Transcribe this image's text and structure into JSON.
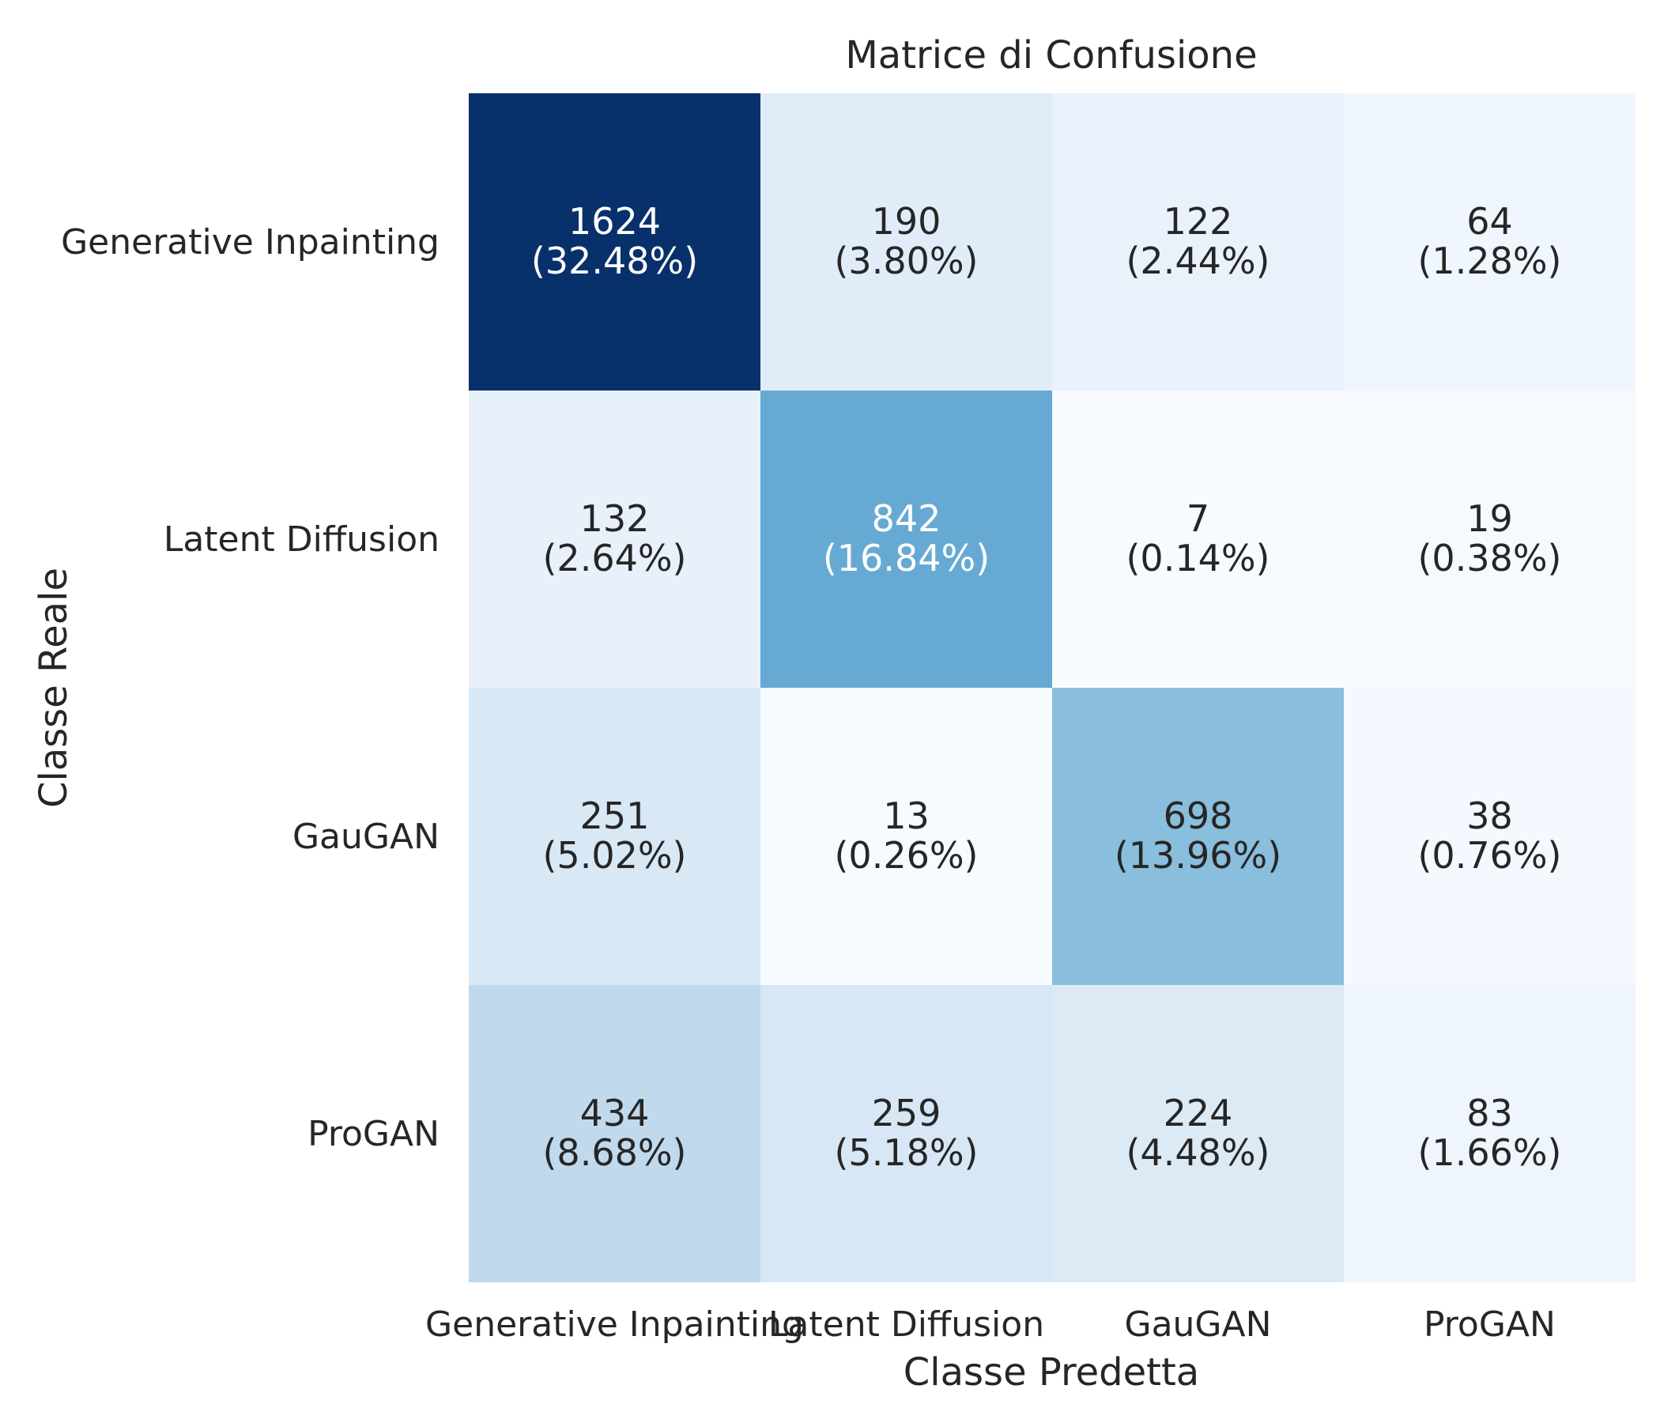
{
  "chart_data": {
    "type": "heatmap",
    "title": "Matrice di Confusione",
    "xlabel": "Classe Predetta",
    "ylabel": "Classe Reale",
    "x_categories": [
      "Generative Inpainting",
      "Latent Diffusion",
      "GauGAN",
      "ProGAN"
    ],
    "y_categories": [
      "Generative Inpainting",
      "Latent Diffusion",
      "GauGAN",
      "ProGAN"
    ],
    "values": [
      [
        1624,
        190,
        122,
        64
      ],
      [
        132,
        842,
        7,
        19
      ],
      [
        251,
        13,
        698,
        38
      ],
      [
        434,
        259,
        224,
        83
      ]
    ],
    "percent_labels": [
      [
        "(32.48%)",
        "(3.80%)",
        "(2.44%)",
        "(1.28%)"
      ],
      [
        "(2.64%)",
        "(16.84%)",
        "(0.14%)",
        "(0.38%)"
      ],
      [
        "(5.02%)",
        "(0.26%)",
        "(13.96%)",
        "(0.76%)"
      ],
      [
        "(8.68%)",
        "(5.18%)",
        "(4.48%)",
        "(1.66%)"
      ]
    ],
    "colormap": "Blues",
    "color_range": [
      7,
      1624
    ],
    "colorbar": false,
    "grid": false
  }
}
